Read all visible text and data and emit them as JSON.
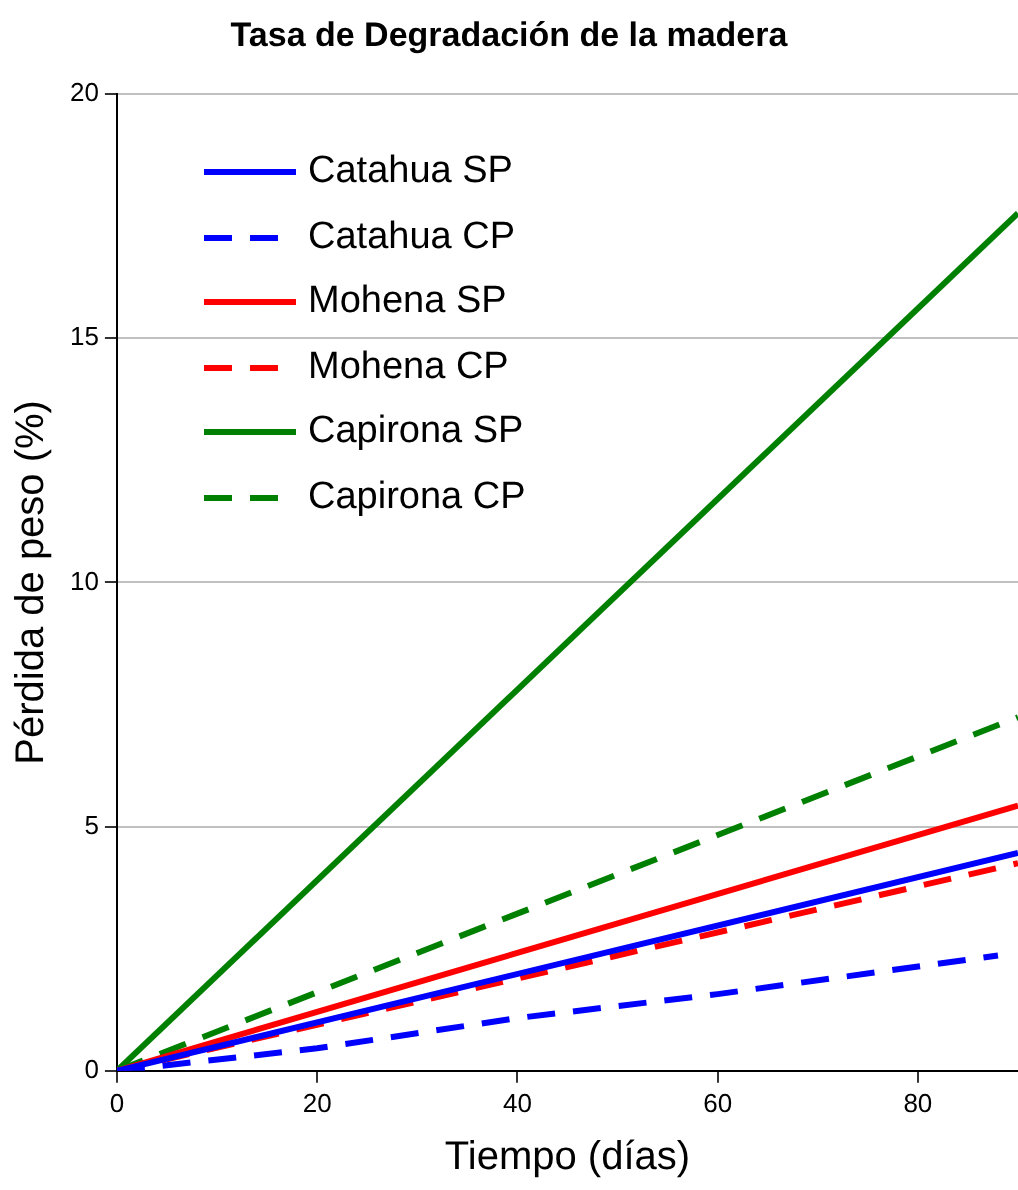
{
  "chart_data": {
    "type": "line",
    "title": "Tasa de Degradación de la madera",
    "xlabel": "Tiempo (días)",
    "ylabel": "Pérdida de peso (%)",
    "xlim": [
      0,
      90
    ],
    "xticks": [
      0,
      20,
      40,
      60,
      80
    ],
    "ylim": [
      0,
      20
    ],
    "yticks": [
      0,
      5,
      10,
      15,
      20
    ],
    "grid": "y",
    "legend": "top left",
    "marker": "none",
    "series": [
      {
        "name": "Catahua SP",
        "color": "#0000ff",
        "line_style": "solid",
        "x": [
          0,
          90
        ],
        "values": [
          0,
          4.46
        ]
      },
      {
        "name": "Catahua CP",
        "color": "#0000ff",
        "line_style": "dashed",
        "x": [
          0,
          20,
          40,
          60,
          88
        ],
        "values": [
          0,
          0.46,
          1.08,
          1.57,
          2.36
        ]
      },
      {
        "name": "Mohena SP",
        "color": "#ff0000",
        "line_style": "solid",
        "x": [
          0,
          90
        ],
        "values": [
          0,
          5.43
        ]
      },
      {
        "name": "Mohena CP",
        "color": "#ff0000",
        "line_style": "dashed",
        "x": [
          0,
          90
        ],
        "values": [
          0,
          4.25
        ]
      },
      {
        "name": "Capirona SP",
        "color": "#008000",
        "line_style": "solid",
        "x": [
          0,
          90
        ],
        "values": [
          0,
          17.56
        ]
      },
      {
        "name": "Capirona CP",
        "color": "#008000",
        "line_style": "dashed",
        "x": [
          0,
          90
        ],
        "values": [
          0,
          7.24
        ]
      }
    ]
  }
}
